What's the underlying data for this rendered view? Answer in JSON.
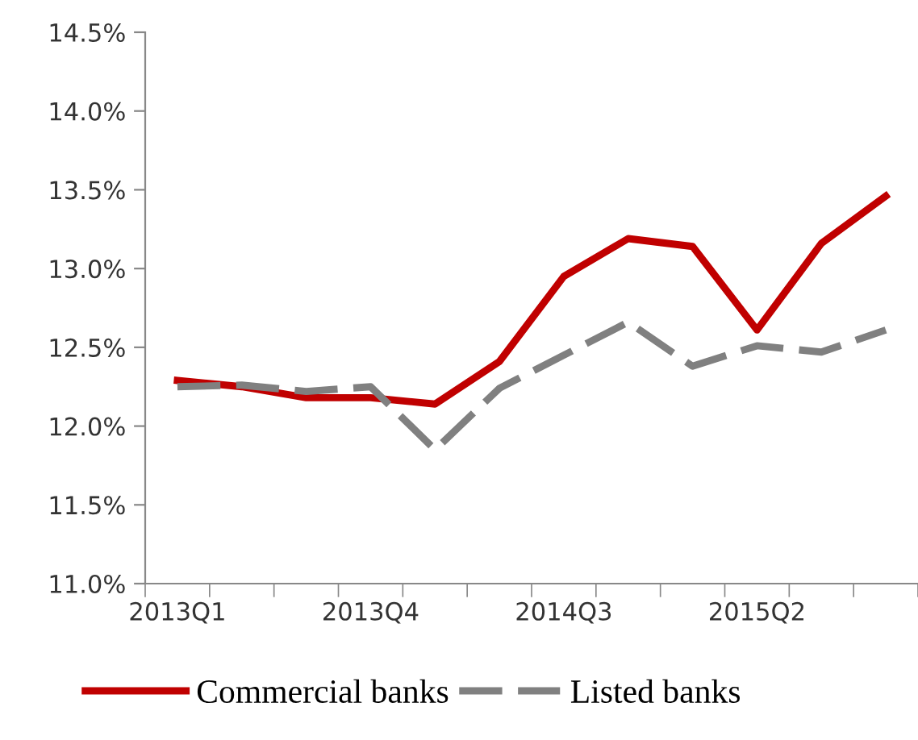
{
  "chart_data": {
    "type": "line",
    "categories": [
      "2013Q1",
      null,
      null,
      "2013Q4",
      null,
      null,
      "2014Q3",
      null,
      null,
      "2015Q2",
      null,
      null
    ],
    "series": [
      {
        "name": "Commercial banks",
        "color": "#c00000",
        "line_style": "solid",
        "values": [
          12.29,
          12.25,
          12.18,
          12.18,
          12.14,
          12.41,
          12.95,
          13.19,
          13.14,
          12.61,
          13.16,
          13.46
        ]
      },
      {
        "name": "Listed banks",
        "color": "#808080",
        "line_style": "dashed",
        "values": [
          12.25,
          12.26,
          12.22,
          12.25,
          11.85,
          12.24,
          12.45,
          12.66,
          12.38,
          12.51,
          12.47,
          12.61
        ]
      }
    ],
    "ylim": [
      11.0,
      14.5
    ],
    "yticks": [
      {
        "value": 11.0,
        "label": "11.0%"
      },
      {
        "value": 11.5,
        "label": "11.5%"
      },
      {
        "value": 12.0,
        "label": "12.0%"
      },
      {
        "value": 12.5,
        "label": "12.5%"
      },
      {
        "value": 13.0,
        "label": "13.0%"
      },
      {
        "value": 13.5,
        "label": "13.5%"
      },
      {
        "value": 14.0,
        "label": "14.0%"
      },
      {
        "value": 14.5,
        "label": "14.5%"
      }
    ],
    "grid": false,
    "legend": "bottom",
    "marker": "none"
  }
}
